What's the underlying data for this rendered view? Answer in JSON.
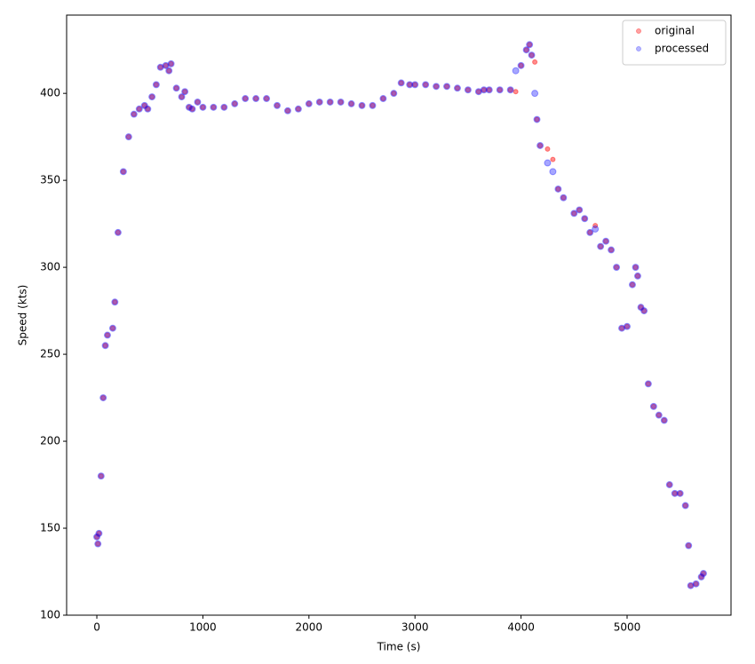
{
  "chart_data": {
    "type": "scatter",
    "xlabel": "Time (s)",
    "ylabel": "Speed (kts)",
    "x": [
      0,
      10,
      20,
      40,
      60,
      80,
      100,
      150,
      170,
      200,
      250,
      300,
      350,
      400,
      450,
      480,
      520,
      560,
      600,
      650,
      680,
      700,
      750,
      800,
      830,
      870,
      900,
      950,
      1000,
      1100,
      1200,
      1300,
      1400,
      1500,
      1600,
      1700,
      1800,
      1900,
      2000,
      2100,
      2200,
      2300,
      2400,
      2500,
      2600,
      2700,
      2800,
      2870,
      2950,
      3000,
      3100,
      3200,
      3300,
      3400,
      3500,
      3600,
      3650,
      3700,
      3800,
      3900,
      3950,
      4000,
      4050,
      4080,
      4100,
      4130,
      4150,
      4180,
      4250,
      4300,
      4350,
      4400,
      4500,
      4550,
      4600,
      4650,
      4700,
      4750,
      4800,
      4850,
      4900,
      4950,
      5000,
      5050,
      5080,
      5100,
      5130,
      5160,
      5200,
      5250,
      5300,
      5350,
      5400,
      5450,
      5500,
      5550,
      5580,
      5600,
      5650,
      5700,
      5720
    ],
    "series": [
      {
        "name": "original",
        "color": "red",
        "values": [
          145,
          141,
          147,
          180,
          225,
          255,
          261,
          265,
          280,
          320,
          355,
          375,
          388,
          391,
          393,
          391,
          398,
          405,
          415,
          416,
          413,
          417,
          403,
          398,
          401,
          392,
          391,
          395,
          392,
          392,
          392,
          394,
          397,
          397,
          397,
          393,
          390,
          391,
          394,
          395,
          395,
          395,
          394,
          393,
          393,
          397,
          400,
          406,
          405,
          405,
          405,
          404,
          404,
          403,
          402,
          401,
          402,
          402,
          402,
          402,
          401,
          416,
          425,
          428,
          422,
          418,
          385,
          370,
          368,
          362,
          345,
          340,
          331,
          333,
          328,
          320,
          324,
          312,
          315,
          310,
          300,
          265,
          266,
          290,
          300,
          295,
          277,
          275,
          233,
          220,
          215,
          212,
          175,
          170,
          170,
          163,
          140,
          117,
          118,
          122,
          124
        ]
      },
      {
        "name": "processed",
        "color": "blue",
        "values": [
          145,
          141,
          147,
          180,
          225,
          255,
          261,
          265,
          280,
          320,
          355,
          375,
          388,
          391,
          393,
          391,
          398,
          405,
          415,
          416,
          413,
          417,
          403,
          398,
          401,
          392,
          391,
          395,
          392,
          392,
          392,
          394,
          397,
          397,
          397,
          393,
          390,
          391,
          394,
          395,
          395,
          395,
          394,
          393,
          393,
          397,
          400,
          406,
          405,
          405,
          405,
          404,
          404,
          403,
          402,
          401,
          402,
          402,
          402,
          402,
          413,
          416,
          425,
          428,
          422,
          400,
          385,
          370,
          360,
          355,
          345,
          340,
          331,
          333,
          328,
          320,
          322,
          312,
          315,
          310,
          300,
          265,
          266,
          290,
          300,
          295,
          277,
          275,
          233,
          220,
          215,
          212,
          175,
          170,
          170,
          163,
          140,
          117,
          118,
          122,
          124
        ]
      }
    ],
    "xlim": [
      -285,
      5980
    ],
    "xticks": [
      0,
      1000,
      2000,
      3000,
      4000,
      5000
    ],
    "ylim": [
      100,
      445
    ],
    "yticks": [
      100,
      150,
      200,
      250,
      300,
      350,
      400
    ],
    "legend": "upper right"
  }
}
